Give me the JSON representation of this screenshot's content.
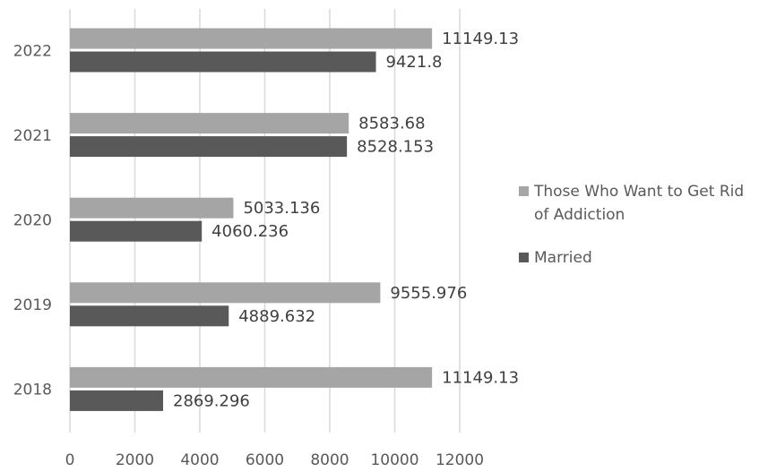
{
  "chart_data": {
    "type": "bar",
    "orientation": "horizontal",
    "title": "",
    "xlabel": "",
    "ylabel": "",
    "categories": [
      "2022",
      "2021",
      "2020",
      "2019",
      "2018"
    ],
    "series": [
      {
        "name": "Those Who Want to Get Rid of Addiction",
        "values": [
          11149.13,
          8583.68,
          5033.136,
          9555.976,
          11149.13
        ],
        "labels": [
          "11149.13",
          "8583.68",
          "5033.136",
          "9555.976",
          "11149.13"
        ],
        "color": "#a5a5a5"
      },
      {
        "name": "Married",
        "values": [
          9421.8,
          8528.153,
          4060.236,
          4889.632,
          2869.296
        ],
        "labels": [
          "9421.8",
          "8528.153",
          "4060.236",
          "4889.632",
          "2869.296"
        ],
        "color": "#595959"
      }
    ],
    "x_ticks": [
      "0",
      "2000",
      "4000",
      "6000",
      "8000",
      "10000",
      "12000"
    ],
    "xlim": [
      0,
      12000
    ],
    "grid": "vertical",
    "gridline_color": "#d9d9d9",
    "legend": {
      "position": "right",
      "items": [
        {
          "lines": [
            "Those Who Want to Get Rid",
            "of Addiction"
          ],
          "color": "#a5a5a5"
        },
        {
          "lines": [
            "Married"
          ],
          "color": "#595959"
        }
      ]
    }
  }
}
